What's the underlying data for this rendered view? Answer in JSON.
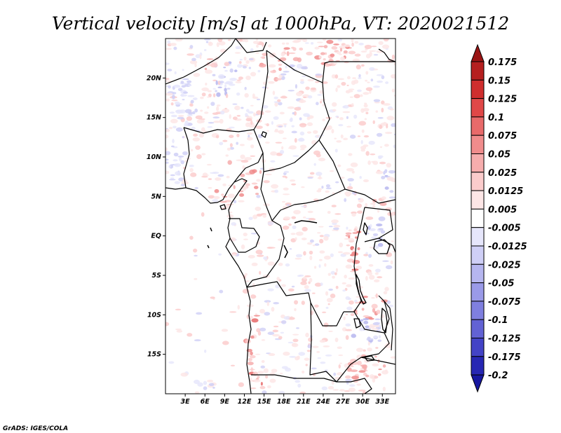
{
  "title": "Vertical velocity [m/s] at 1000hPa, VT: 2020021512",
  "credit": "GrADS: IGES/COLA",
  "map": {
    "lon_range": [
      0,
      35
    ],
    "lat_range": [
      -20,
      25
    ],
    "lat_ticks": [
      {
        "lat": 20,
        "label": "20N"
      },
      {
        "lat": 15,
        "label": "15N"
      },
      {
        "lat": 10,
        "label": "10N"
      },
      {
        "lat": 5,
        "label": "5N"
      },
      {
        "lat": 0,
        "label": "EQ"
      },
      {
        "lat": -5,
        "label": "5S"
      },
      {
        "lat": -10,
        "label": "10S"
      },
      {
        "lat": -15,
        "label": "15S"
      }
    ],
    "lon_ticks": [
      {
        "lon": 3,
        "label": "3E"
      },
      {
        "lon": 6,
        "label": "6E"
      },
      {
        "lon": 9,
        "label": "9E"
      },
      {
        "lon": 12,
        "label": "12E"
      },
      {
        "lon": 15,
        "label": "15E"
      },
      {
        "lon": 18,
        "label": "18E"
      },
      {
        "lon": 21,
        "label": "21E"
      },
      {
        "lon": 24,
        "label": "24E"
      },
      {
        "lon": 27,
        "label": "27E"
      },
      {
        "lon": 30,
        "label": "30E"
      },
      {
        "lon": 33,
        "label": "33E"
      }
    ]
  },
  "colorbar": {
    "levels": [
      "0.175",
      "0.15",
      "0.125",
      "0.1",
      "0.075",
      "0.05",
      "0.025",
      "0.0125",
      "0.005",
      "-0.005",
      "-0.0125",
      "-0.025",
      "-0.05",
      "-0.075",
      "-0.1",
      "-0.125",
      "-0.175",
      "-0.2"
    ],
    "colors": [
      "#9a1414",
      "#b51f1f",
      "#cf2e2e",
      "#e04848",
      "#e86a6a",
      "#f08c8c",
      "#f6adad",
      "#fbcccc",
      "#fde6e6",
      "#ffffff",
      "#e6e6fb",
      "#cfcff6",
      "#b6b6ef",
      "#9a9ae8",
      "#7f7fdf",
      "#6262d4",
      "#4343c6",
      "#2727b3",
      "#1717a0"
    ]
  }
}
